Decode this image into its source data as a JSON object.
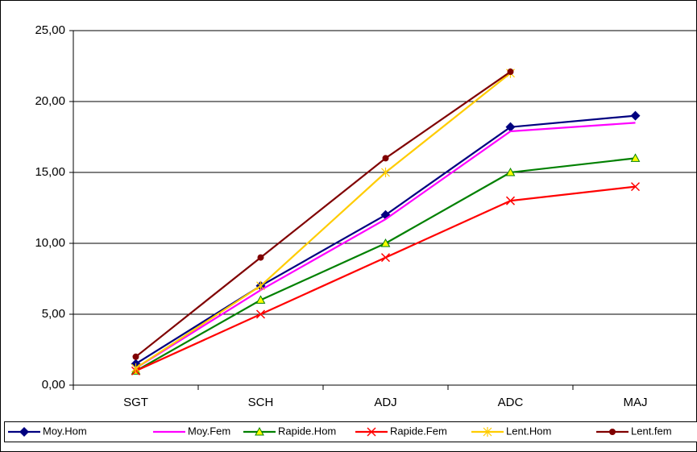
{
  "chart_data": {
    "type": "line",
    "categories": [
      "SGT",
      "SCH",
      "ADJ",
      "ADC",
      "MAJ"
    ],
    "ylim": [
      0,
      25
    ],
    "yticks": [
      {
        "value": 0,
        "label": "0,00"
      },
      {
        "value": 5,
        "label": "5,00"
      },
      {
        "value": 10,
        "label": "10,00"
      },
      {
        "value": 15,
        "label": "15,00"
      },
      {
        "value": 20,
        "label": "20,00"
      },
      {
        "value": 25,
        "label": "25,00"
      }
    ],
    "grid": true,
    "legend": "bottom",
    "series": [
      {
        "name": "Moy.Hom",
        "color": "#000080",
        "marker": "diamond",
        "values": [
          1.5,
          7,
          12,
          18.2,
          19
        ]
      },
      {
        "name": "Moy.Fem",
        "color": "#FF00FF",
        "marker": "none",
        "values": [
          1.2,
          6.7,
          11.7,
          17.9,
          18.5
        ]
      },
      {
        "name": "Rapide.Hom",
        "color": "#008000",
        "marker": "triangle",
        "values": [
          1,
          6,
          10,
          15,
          16
        ]
      },
      {
        "name": "Rapide.Fem",
        "color": "#FF0000",
        "marker": "x",
        "values": [
          1,
          5,
          9,
          13,
          14
        ]
      },
      {
        "name": "Lent.Hom",
        "color": "#FFCC00",
        "marker": "star",
        "values": [
          1.2,
          7,
          15,
          22,
          null
        ]
      },
      {
        "name": "Lent.fem",
        "color": "#800000",
        "marker": "circle",
        "values": [
          2,
          9,
          16,
          22.1,
          null
        ]
      }
    ]
  }
}
